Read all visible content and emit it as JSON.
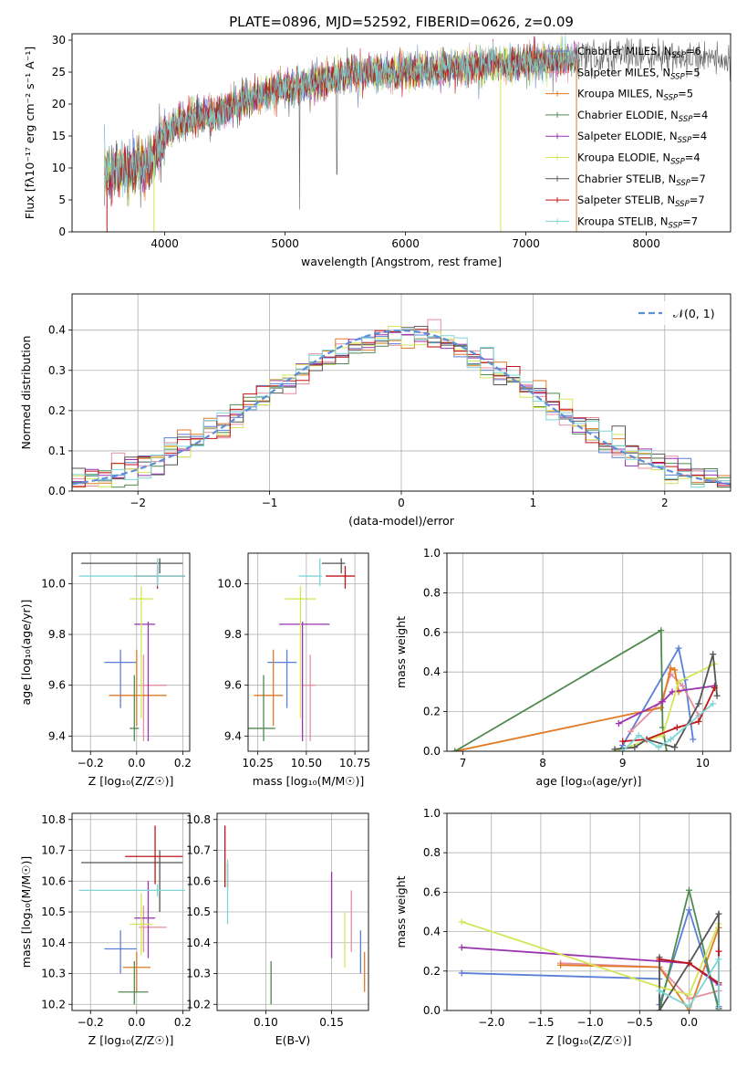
{
  "figure": {
    "title": "PLATE=0896, MJD=52592, FIBERID=0626, z=0.09"
  },
  "models": [
    {
      "name": "Chabrier MILES",
      "n": 6,
      "color": "#5b7fd6"
    },
    {
      "name": "Salpeter MILES",
      "n": 5,
      "color": "#e48fa0"
    },
    {
      "name": "Kroupa MILES",
      "n": 5,
      "color": "#e07a25"
    },
    {
      "name": "Chabrier ELODIE",
      "n": 4,
      "color": "#4f8a4f"
    },
    {
      "name": "Salpeter ELODIE",
      "n": 4,
      "color": "#9a33b0"
    },
    {
      "name": "Kroupa ELODIE",
      "n": 4,
      "color": "#d4e657"
    },
    {
      "name": "Chabrier STELIB",
      "n": 7,
      "color": "#555555"
    },
    {
      "name": "Salpeter STELIB",
      "n": 7,
      "color": "#c0161b"
    },
    {
      "name": "Kroupa STELIB",
      "n": 7,
      "color": "#7fd6d6"
    }
  ],
  "chart_data": [
    {
      "id": "spectrum",
      "type": "line",
      "title": "PLATE=0896, MJD=52592, FIBERID=0626, z=0.09",
      "xlabel": "wavelength [Angstrom, rest frame]",
      "ylabel": "Flux [fλ10⁻¹⁷ erg cm⁻² s⁻¹ A⁻¹]",
      "xlim": [
        3230,
        8700
      ],
      "ylim": [
        0,
        31
      ],
      "xticks": [
        4000,
        5000,
        6000,
        7000,
        8000
      ],
      "yticks": [
        0,
        5,
        10,
        15,
        20,
        25,
        30
      ],
      "legend": "upper right",
      "continuum": [
        [
          3500,
          9
        ],
        [
          3700,
          10
        ],
        [
          3900,
          11
        ],
        [
          4000,
          15
        ],
        [
          4100,
          17
        ],
        [
          4300,
          18
        ],
        [
          4500,
          19
        ],
        [
          4700,
          21
        ],
        [
          5000,
          22.5
        ],
        [
          5300,
          23.5
        ],
        [
          5600,
          25
        ],
        [
          6000,
          25
        ],
        [
          6300,
          25.5
        ],
        [
          6600,
          26
        ],
        [
          7000,
          26.5
        ],
        [
          7400,
          27
        ],
        [
          7800,
          27.5
        ],
        [
          8200,
          27.5
        ],
        [
          8700,
          27
        ]
      ]
    },
    {
      "id": "residuals",
      "type": "line",
      "xlabel": "(data-model)/error",
      "ylabel": "Normed distribution",
      "xlim": [
        -2.5,
        2.5
      ],
      "ylim": [
        0,
        0.49
      ],
      "xticks": [
        -2,
        -1,
        0,
        1,
        2
      ],
      "yticks": [
        0.0,
        0.1,
        0.2,
        0.3,
        0.4
      ],
      "grid": true,
      "legend": "upper right",
      "reference": {
        "label": "𝒩(0, 1)",
        "color": "#5b8fd9",
        "mean": 0,
        "sigma": 1
      }
    },
    {
      "id": "age-vs-Z",
      "type": "scatter",
      "xlabel": "Z [log₁₀(Z/Z☉)]",
      "ylabel": "age  [log₁₀(age/yr)]",
      "xlim": [
        -0.28,
        0.23
      ],
      "ylim": [
        9.34,
        10.12
      ],
      "xticks": [
        -0.2,
        0.0,
        0.2
      ],
      "yticks": [
        9.4,
        9.6,
        9.8,
        10.0
      ],
      "grid": true,
      "points": [
        {
          "x": -0.07,
          "xerr": [
            0.07,
            0.07
          ],
          "y": 9.69,
          "yerr": [
            0.18,
            0.05
          ]
        },
        {
          "x": 0.03,
          "xerr": [
            0.02,
            0.1
          ],
          "y": 9.6,
          "yerr": [
            0.22,
            0.12
          ]
        },
        {
          "x": 0.0,
          "xerr": [
            0.12,
            0.13
          ],
          "y": 9.56,
          "yerr": [
            0.12,
            0.18
          ]
        },
        {
          "x": -0.01,
          "xerr": [
            0.02,
            0.02
          ],
          "y": 9.43,
          "yerr": [
            0.05,
            0.21
          ]
        },
        {
          "x": 0.05,
          "xerr": [
            0.06,
            0.03
          ],
          "y": 9.84,
          "yerr": [
            0.46,
            0.01
          ]
        },
        {
          "x": 0.02,
          "xerr": [
            0.05,
            0.05
          ],
          "y": 9.94,
          "yerr": [
            0.47,
            0.05
          ]
        },
        {
          "x": 0.1,
          "xerr": [
            0.34,
            0.1
          ],
          "y": 10.08,
          "yerr": [
            0.04,
            0.02
          ]
        },
        {
          "x": 0.09,
          "xerr": [
            0.1,
            0.12
          ],
          "y": 10.03,
          "yerr": [
            0.05,
            0.04
          ]
        },
        {
          "x": 0.09,
          "xerr": [
            0.34,
            0.12
          ],
          "y": 10.03,
          "yerr": [
            0.04,
            0.07
          ]
        }
      ]
    },
    {
      "id": "age-vs-mass",
      "type": "scatter",
      "xlabel": "mass [log₁₀(M/M☉)]",
      "ylabel": "",
      "xlim": [
        10.2,
        10.82
      ],
      "ylim": [
        9.34,
        10.12
      ],
      "xticks": [
        10.25,
        10.5,
        10.75
      ],
      "yticks": [
        9.4,
        9.6,
        9.8,
        10.0
      ],
      "grid": true,
      "points": [
        {
          "x": 10.4,
          "xerr": [
            0.1,
            0.05
          ],
          "y": 9.69,
          "yerr": [
            0.18,
            0.05
          ]
        },
        {
          "x": 10.52,
          "xerr": [
            0.04,
            0.03
          ],
          "y": 9.6,
          "yerr": [
            0.22,
            0.12
          ]
        },
        {
          "x": 10.33,
          "xerr": [
            0.1,
            0.05
          ],
          "y": 9.56,
          "yerr": [
            0.12,
            0.18
          ]
        },
        {
          "x": 10.28,
          "xerr": [
            0.08,
            0.06
          ],
          "y": 9.43,
          "yerr": [
            0.05,
            0.21
          ]
        },
        {
          "x": 10.48,
          "xerr": [
            0.12,
            0.14
          ],
          "y": 9.84,
          "yerr": [
            0.46,
            0.01
          ]
        },
        {
          "x": 10.47,
          "xerr": [
            0.08,
            0.08
          ],
          "y": 9.94,
          "yerr": [
            0.47,
            0.05
          ]
        },
        {
          "x": 10.68,
          "xerr": [
            0.1,
            0.02
          ],
          "y": 10.08,
          "yerr": [
            0.04,
            0.02
          ]
        },
        {
          "x": 10.7,
          "xerr": [
            0.1,
            0.05
          ],
          "y": 10.03,
          "yerr": [
            0.05,
            0.04
          ]
        },
        {
          "x": 10.57,
          "xerr": [
            0.11,
            0.01
          ],
          "y": 10.03,
          "yerr": [
            0.04,
            0.07
          ]
        }
      ]
    },
    {
      "id": "weight-vs-age",
      "type": "line",
      "xlabel": "age  [log₁₀(age/yr)]",
      "ylabel": "mass weight",
      "xlim": [
        6.8,
        10.35
      ],
      "ylim": [
        0,
        1.0
      ],
      "xticks": [
        7,
        8,
        9,
        10
      ],
      "yticks": [
        0.0,
        0.2,
        0.4,
        0.6,
        0.8,
        1.0
      ],
      "grid": true,
      "series": [
        {
          "model": 0,
          "points": [
            [
              8.95,
              0.0
            ],
            [
              9.0,
              0.03
            ],
            [
              9.7,
              0.52
            ],
            [
              9.78,
              0.36
            ],
            [
              9.88,
              0.06
            ]
          ]
        },
        {
          "model": 1,
          "points": [
            [
              9.1,
              0.1
            ],
            [
              9.48,
              0.25
            ],
            [
              9.6,
              0.39
            ],
            [
              9.75,
              0.33
            ],
            [
              9.95,
              0.18
            ]
          ]
        },
        {
          "model": 2,
          "points": [
            [
              6.9,
              0.0
            ],
            [
              9.48,
              0.22
            ],
            [
              9.6,
              0.42
            ],
            [
              9.65,
              0.41
            ],
            [
              9.7,
              0.3
            ]
          ]
        },
        {
          "model": 3,
          "points": [
            [
              6.9,
              0.0
            ],
            [
              9.48,
              0.61
            ],
            [
              9.5,
              0.12
            ],
            [
              9.55,
              0.0
            ]
          ]
        },
        {
          "model": 4,
          "points": [
            [
              8.95,
              0.14
            ],
            [
              9.5,
              0.25
            ],
            [
              9.62,
              0.3
            ],
            [
              10.15,
              0.33
            ]
          ]
        },
        {
          "model": 5,
          "points": [
            [
              8.9,
              0.0
            ],
            [
              9.5,
              0.08
            ],
            [
              9.7,
              0.35
            ],
            [
              10.15,
              0.44
            ]
          ]
        },
        {
          "model": 6,
          "points": [
            [
              8.9,
              0.01
            ],
            [
              9.15,
              0.02
            ],
            [
              9.3,
              0.06
            ],
            [
              9.65,
              0.02
            ],
            [
              9.95,
              0.24
            ],
            [
              10.13,
              0.49
            ],
            [
              10.18,
              0.28
            ]
          ]
        },
        {
          "model": 7,
          "points": [
            [
              9.0,
              0.05
            ],
            [
              9.3,
              0.06
            ],
            [
              9.68,
              0.12
            ],
            [
              9.95,
              0.15
            ],
            [
              10.15,
              0.32
            ]
          ]
        },
        {
          "model": 8,
          "points": [
            [
              9.0,
              0.0
            ],
            [
              9.2,
              0.08
            ],
            [
              9.45,
              0.02
            ],
            [
              9.6,
              0.06
            ],
            [
              10.13,
              0.24
            ]
          ]
        }
      ]
    },
    {
      "id": "mass-vs-Z",
      "type": "scatter",
      "xlabel": "Z [log₁₀(Z/Z☉)]",
      "ylabel": "mass [log₁₀(M/M☉)]",
      "xlim": [
        -0.28,
        0.23
      ],
      "ylim": [
        10.18,
        10.82
      ],
      "xticks": [
        -0.2,
        0.0,
        0.2
      ],
      "yticks": [
        10.2,
        10.3,
        10.4,
        10.5,
        10.6,
        10.7,
        10.8
      ],
      "grid": true,
      "points": [
        {
          "x": -0.07,
          "xerr": [
            0.07,
            0.07
          ],
          "y": 10.38,
          "yerr": [
            0.08,
            0.06
          ]
        },
        {
          "x": 0.03,
          "xerr": [
            0.02,
            0.1
          ],
          "y": 10.45,
          "yerr": [
            0.08,
            0.07
          ]
        },
        {
          "x": 0.0,
          "xerr": [
            0.06,
            0.06
          ],
          "y": 10.32,
          "yerr": [
            0.08,
            0.05
          ]
        },
        {
          "x": -0.01,
          "xerr": [
            0.07,
            0.06
          ],
          "y": 10.24,
          "yerr": [
            0.04,
            0.1
          ]
        },
        {
          "x": 0.05,
          "xerr": [
            0.06,
            0.03
          ],
          "y": 10.48,
          "yerr": [
            0.13,
            0.12
          ]
        },
        {
          "x": 0.02,
          "xerr": [
            0.05,
            0.05
          ],
          "y": 10.46,
          "yerr": [
            0.1,
            0.1
          ]
        },
        {
          "x": 0.1,
          "xerr": [
            0.34,
            0.1
          ],
          "y": 10.66,
          "yerr": [
            0.16,
            0.04
          ]
        },
        {
          "x": 0.08,
          "xerr": [
            0.13,
            0.12
          ],
          "y": 10.68,
          "yerr": [
            0.09,
            0.1
          ]
        },
        {
          "x": 0.09,
          "xerr": [
            0.34,
            0.12
          ],
          "y": 10.57,
          "yerr": [
            0.02,
            0.02
          ]
        }
      ]
    },
    {
      "id": "mass-vs-EBV",
      "type": "scatter",
      "xlabel": "E(B-V)",
      "ylabel": "",
      "xlim": [
        0.063,
        0.178
      ],
      "ylim": [
        10.18,
        10.82
      ],
      "xticks": [
        0.05,
        0.1,
        0.15
      ],
      "yticks": [
        10.2,
        10.3,
        10.4,
        10.5,
        10.6,
        10.7,
        10.8
      ],
      "grid": true,
      "points": [
        {
          "x": 0.172,
          "xerr": [
            0,
            0
          ],
          "y": 10.38,
          "yerr": [
            0.08,
            0.06
          ]
        },
        {
          "x": 0.165,
          "xerr": [
            0,
            0
          ],
          "y": 10.45,
          "yerr": [
            0.08,
            0.12
          ]
        },
        {
          "x": 0.175,
          "xerr": [
            0,
            0
          ],
          "y": 10.32,
          "yerr": [
            0.08,
            0.05
          ]
        },
        {
          "x": 0.104,
          "xerr": [
            0,
            0
          ],
          "y": 10.24,
          "yerr": [
            0.04,
            0.1
          ]
        },
        {
          "x": 0.15,
          "xerr": [
            0,
            0
          ],
          "y": 10.48,
          "yerr": [
            0.13,
            0.15
          ]
        },
        {
          "x": 0.16,
          "xerr": [
            0,
            0
          ],
          "y": 10.42,
          "yerr": [
            0.1,
            0.08
          ]
        },
        {
          "x": 0.071,
          "xerr": [
            0,
            0
          ],
          "y": 10.62,
          "yerr": [
            0.04,
            0.04
          ]
        },
        {
          "x": 0.069,
          "xerr": [
            0,
            0
          ],
          "y": 10.68,
          "yerr": [
            0.1,
            0.1
          ]
        },
        {
          "x": 0.071,
          "xerr": [
            0,
            0
          ],
          "y": 10.57,
          "yerr": [
            0.11,
            0.1
          ]
        }
      ]
    },
    {
      "id": "weight-vs-Z",
      "type": "line",
      "xlabel": "Z [log₁₀(Z/Z☉)]",
      "ylabel": "mass weight",
      "xlim": [
        -2.45,
        0.42
      ],
      "ylim": [
        0,
        1.0
      ],
      "xticks": [
        -2.0,
        -1.5,
        -1.0,
        -0.5,
        0.0
      ],
      "yticks": [
        0.0,
        0.2,
        0.4,
        0.6,
        0.8,
        1.0
      ],
      "grid": true,
      "series": [
        {
          "model": 0,
          "points": [
            [
              -2.3,
              0.19
            ],
            [
              -0.3,
              0.16
            ],
            [
              -0.3,
              0.03
            ],
            [
              0.0,
              0.51
            ],
            [
              0.3,
              0.02
            ]
          ]
        },
        {
          "model": 1,
          "points": [
            [
              -1.3,
              0.24
            ],
            [
              -0.3,
              0.22
            ],
            [
              0.0,
              0.06
            ],
            [
              0.3,
              0.1
            ]
          ]
        },
        {
          "model": 2,
          "points": [
            [
              -1.3,
              0.23
            ],
            [
              -0.3,
              0.22
            ],
            [
              0.0,
              0.0
            ],
            [
              0.3,
              0.42
            ]
          ]
        },
        {
          "model": 3,
          "points": [
            [
              -0.3,
              0.0
            ],
            [
              0.0,
              0.61
            ],
            [
              0.3,
              0.0
            ]
          ]
        },
        {
          "model": 4,
          "points": [
            [
              -2.3,
              0.32
            ],
            [
              -0.3,
              0.25
            ],
            [
              0.0,
              0.24
            ],
            [
              0.3,
              0.13
            ]
          ]
        },
        {
          "model": 5,
          "points": [
            [
              -2.3,
              0.45
            ],
            [
              -0.3,
              0.12
            ],
            [
              0.0,
              0.08
            ],
            [
              0.3,
              0.44
            ]
          ]
        },
        {
          "model": 6,
          "points": [
            [
              -0.3,
              0.27
            ],
            [
              -0.3,
              0.0
            ],
            [
              0.0,
              0.24
            ],
            [
              0.3,
              0.49
            ],
            [
              0.3,
              0.01
            ]
          ]
        },
        {
          "model": 7,
          "points": [
            [
              -0.3,
              0.26
            ],
            [
              0.0,
              0.24
            ],
            [
              0.3,
              0.14
            ],
            [
              0.3,
              0.3
            ]
          ]
        },
        {
          "model": 8,
          "points": [
            [
              -0.3,
              0.1
            ],
            [
              0.0,
              0.02
            ],
            [
              0.3,
              0.26
            ],
            [
              0.3,
              0.0
            ]
          ]
        }
      ]
    }
  ]
}
